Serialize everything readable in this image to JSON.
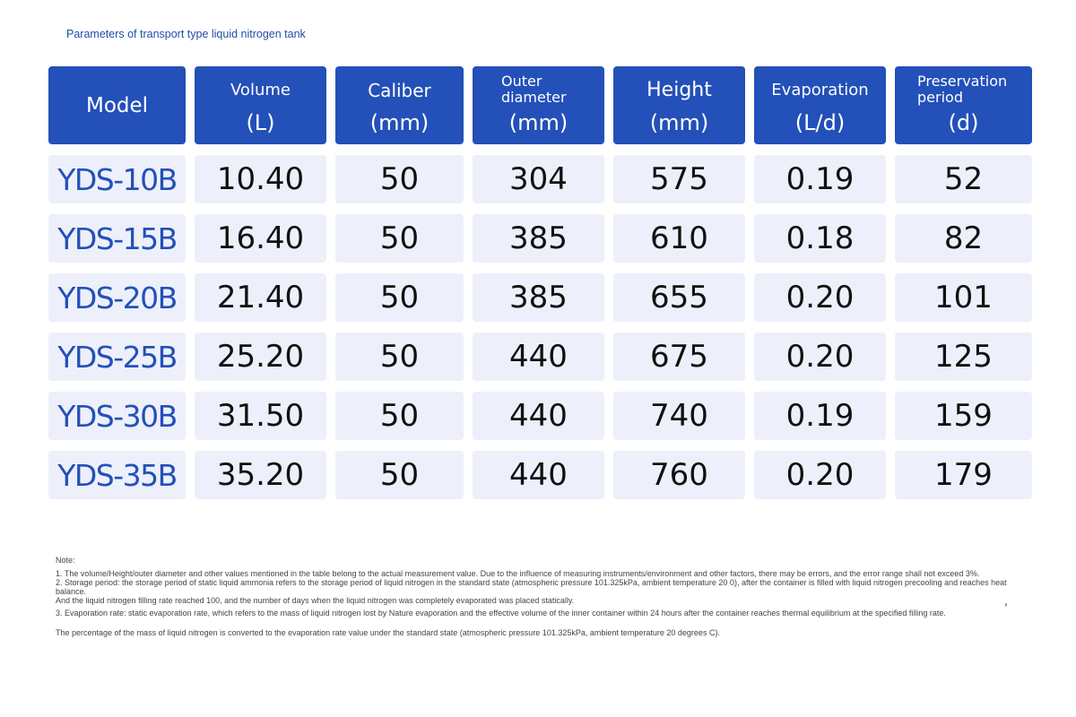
{
  "title": "Parameters of transport type liquid nitrogen tank",
  "headers": [
    {
      "line1": "Model",
      "line2": ""
    },
    {
      "line1": "Volume",
      "line2": "(L)"
    },
    {
      "line1": "Caliber",
      "line2": "(mm)"
    },
    {
      "line1": "Outer diameter",
      "line2": "(mm)"
    },
    {
      "line1": "Height",
      "line2": "(mm)"
    },
    {
      "line1": "Evaporation",
      "line2": "(L/d)"
    },
    {
      "line1": "Preservation period",
      "line2": "(d)"
    }
  ],
  "rows": [
    [
      "YDS-10B",
      "10.40",
      "50",
      "304",
      "575",
      "0.19",
      "52"
    ],
    [
      "YDS-15B",
      "16.40",
      "50",
      "385",
      "610",
      "0.18",
      "82"
    ],
    [
      "YDS-20B",
      "21.40",
      "50",
      "385",
      "655",
      "0.20",
      "101"
    ],
    [
      "YDS-25B",
      "25.20",
      "50",
      "440",
      "675",
      "0.20",
      "125"
    ],
    [
      "YDS-30B",
      "31.50",
      "50",
      "440",
      "740",
      "0.19",
      "159"
    ],
    [
      "YDS-35B",
      "35.20",
      "50",
      "440",
      "760",
      "0.20",
      "179"
    ]
  ],
  "notes": {
    "label": "Note:",
    "n1": "1. The volume/Height/outer diameter and other values mentioned in the table belong to the actual measurement value. Due to the influence of measuring instruments/environment and other factors, there may be errors, and the error range shall not exceed 3%.",
    "n2": "2. Storage period: the storage period of static liquid ammonia refers to the storage period of liquid nitrogen in the standard state (atmospheric pressure 101.325kPa, ambient temperature 20 0), after the container is filled with liquid nitrogen precooling and reaches heat balance.",
    "n2b": "And the liquid nitrogen filling rate reached 100, and the number of days when the liquid nitrogen was completely evaporated was placed statically.",
    "n3": "3. Evaporation rate: static evaporation rate, which refers to the mass of liquid nitrogen lost by Nature evaporation and the effective volume of the inner container within 24 hours after the container reaches thermal equilibrium at the specified filling rate.",
    "n3b": "The percentage of the mass of liquid nitrogen is converted to the evaporation rate value under the standard state (atmospheric pressure 101.325kPa, ambient temperature 20 degrees C).",
    "stray": ","
  },
  "colors": {
    "header_bg": "#2350b9",
    "cell_bg": "#edf0fa",
    "model_text": "#2350b9"
  }
}
